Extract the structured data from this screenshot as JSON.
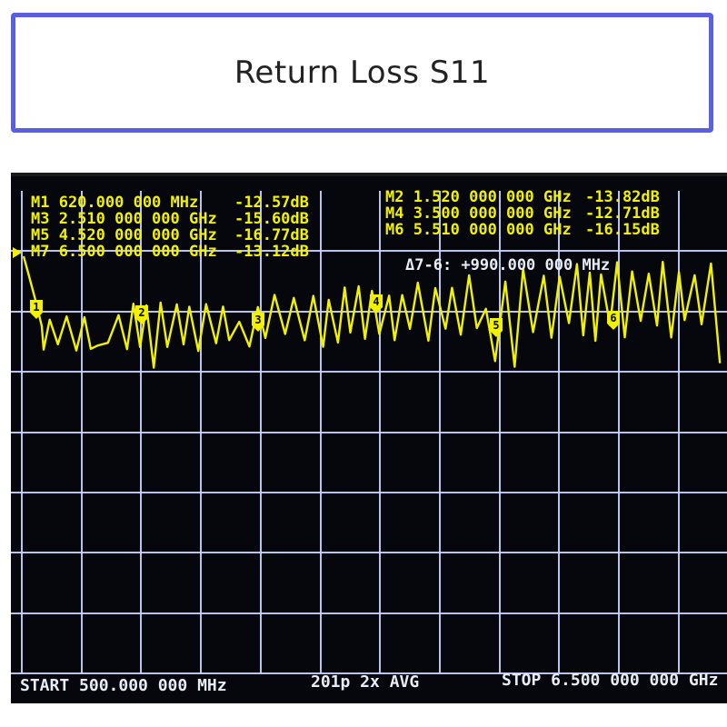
{
  "title": "Return Loss S11",
  "markers": [
    {
      "id": "M1",
      "text": "M1 620.000 000 MHz",
      "value": "-12.57dB"
    },
    {
      "id": "M2",
      "text": "M2 1.520 000 000 GHz",
      "value": "-13.82dB"
    },
    {
      "id": "M3",
      "text": "M3 2.510 000 000 GHz",
      "value": "-15.60dB"
    },
    {
      "id": "M4",
      "text": "M4 3.500 000 000 GHz",
      "value": "-12.71dB"
    },
    {
      "id": "M5",
      "text": "M5 4.520 000 000 GHz",
      "value": "-16.77dB"
    },
    {
      "id": "M6",
      "text": "M6 5.510 000 000 GHz",
      "value": "-16.15dB"
    },
    {
      "id": "M7",
      "text": "M7 6.500 000 000 GHz",
      "value": "-13.12dB"
    }
  ],
  "delta": "Δ7-6: +990.000 000 MHz",
  "marker_flags": [
    "1",
    "2",
    "3",
    "4",
    "5",
    "6"
  ],
  "footer": {
    "start": "START  500.000 000 MHz",
    "points": "201p 2x AVG",
    "stop": "STOP 6.500 000 000 GHz"
  },
  "colors": {
    "trace": "#f2f200",
    "grid": "#c9d3ff",
    "screen_bg": "#05070c",
    "title_border": "#5a5fe0"
  },
  "chart_data": {
    "type": "line",
    "x_start_mhz": 500,
    "x_stop_mhz": 6500,
    "x_unit": "MHz",
    "y_unit": "dB",
    "points": 201,
    "markers_mhz": [
      620,
      1520,
      2510,
      3500,
      4520,
      5510,
      6500
    ],
    "markers_db": [
      -12.57,
      -13.82,
      -15.6,
      -12.71,
      -16.77,
      -16.15,
      -13.12
    ]
  }
}
